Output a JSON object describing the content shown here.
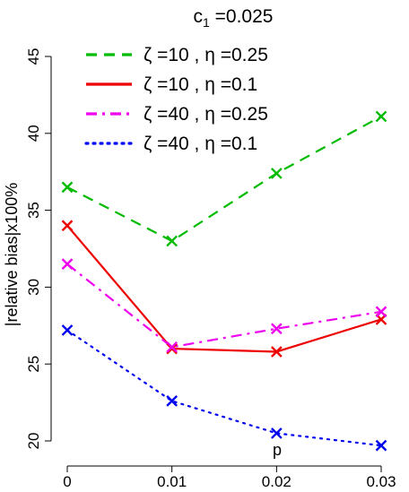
{
  "chart_data": {
    "type": "line",
    "title": "c",
    "title_subscript": "1",
    "title_suffix": " =0.025",
    "xlabel": "p",
    "ylabel": "|relative bias|x100%",
    "x": [
      0,
      0.01,
      0.02,
      0.03
    ],
    "x_tick_labels": [
      "0",
      "0.01",
      "0.02",
      "0.03"
    ],
    "ylim": [
      20,
      45
    ],
    "y_ticks": [
      20,
      25,
      30,
      35,
      40,
      45
    ],
    "y_tick_labels": [
      "20",
      "25",
      "30",
      "35",
      "40",
      "45"
    ],
    "grid": false,
    "legend_position": "top-left",
    "series": [
      {
        "name": "ζ =10 , η =0.25",
        "values": [
          36.5,
          33.0,
          37.4,
          41.1
        ],
        "color": "#00bb00",
        "dash": "dashed",
        "marker": "x"
      },
      {
        "name": "ζ =10 , η =0.1",
        "values": [
          34.0,
          26.0,
          25.8,
          27.9
        ],
        "color": "#ee0000",
        "dash": "solid",
        "marker": "x"
      },
      {
        "name": "ζ =40 , η =0.25",
        "values": [
          31.5,
          26.1,
          27.3,
          28.4
        ],
        "color": "#ee00ee",
        "dash": "dashdot",
        "marker": "x"
      },
      {
        "name": "ζ =40 , η =0.1",
        "values": [
          27.2,
          22.6,
          20.5,
          19.7
        ],
        "color": "#0000ee",
        "dash": "dotted",
        "marker": "x"
      }
    ]
  }
}
